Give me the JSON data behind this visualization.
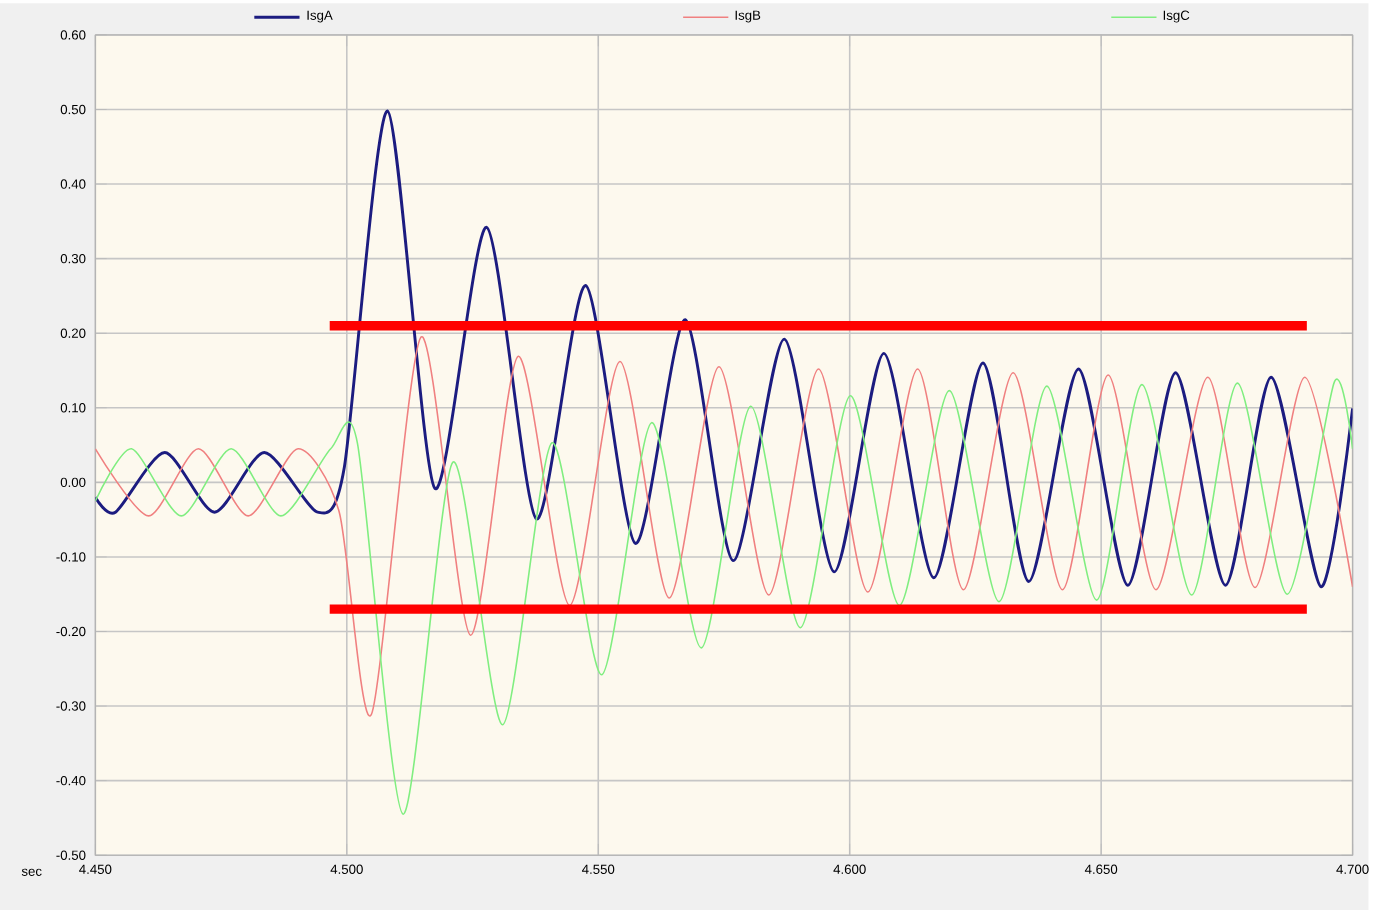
{
  "chart_data": {
    "type": "line",
    "xlabel": "sec",
    "legend": "top",
    "grid": true,
    "xlim": [
      4.45,
      4.7
    ],
    "ylim": [
      -0.5,
      0.6
    ],
    "xticks": [
      {
        "value": 4.45,
        "label": "4.450"
      },
      {
        "value": 4.5,
        "label": "4.500"
      },
      {
        "value": 4.55,
        "label": "4.550"
      },
      {
        "value": 4.6,
        "label": "4.600"
      },
      {
        "value": 4.65,
        "label": "4.650"
      },
      {
        "value": 4.7,
        "label": "4.700"
      }
    ],
    "yticks": [
      {
        "value": -0.5,
        "label": "-0.50"
      },
      {
        "value": -0.4,
        "label": "-0.40"
      },
      {
        "value": -0.3,
        "label": "-0.30"
      },
      {
        "value": -0.2,
        "label": "-0.20"
      },
      {
        "value": -0.1,
        "label": "-0.10"
      },
      {
        "value": 0,
        "label": "0.00"
      },
      {
        "value": 0.1,
        "label": "0.10"
      },
      {
        "value": 0.2,
        "label": "0.20"
      },
      {
        "value": 0.3,
        "label": "0.30"
      },
      {
        "value": 0.4,
        "label": "0.40"
      },
      {
        "value": 0.5,
        "label": "0.50"
      },
      {
        "value": 0.6,
        "label": "0.60"
      }
    ],
    "series": [
      {
        "name": "IsgA",
        "color": "#1c1c80",
        "x": [
          4.45,
          4.454,
          4.4638,
          4.4737,
          4.4836,
          4.4942,
          4.4995,
          4.5081,
          4.5175,
          4.5278,
          4.5377,
          4.5475,
          4.5574,
          4.5673,
          4.5768,
          4.587,
          4.5969,
          4.6068,
          4.6167,
          4.6265,
          4.6356,
          4.6455,
          4.6553,
          4.6648,
          4.6747,
          4.6838,
          4.6937,
          4.7
        ],
        "values": [
          -0.02,
          -0.04,
          0.04,
          -0.04,
          0.04,
          -0.04,
          0.02,
          0.498,
          -0.008,
          0.342,
          -0.049,
          0.264,
          -0.082,
          0.218,
          -0.105,
          0.192,
          -0.12,
          0.173,
          -0.128,
          0.16,
          -0.133,
          0.152,
          -0.138,
          0.147,
          -0.138,
          0.141,
          -0.14,
          0.099
        ]
      },
      {
        "name": "IsgB",
        "color": "#f08080",
        "x": [
          4.45,
          4.4606,
          4.4705,
          4.4804,
          4.4903,
          4.4985,
          4.5049,
          4.5148,
          4.5246,
          4.5341,
          4.5443,
          4.5543,
          4.5641,
          4.574,
          4.5839,
          4.5938,
          4.6036,
          4.6135,
          4.6226,
          4.6325,
          4.6423,
          4.6514,
          4.6609,
          4.6712,
          4.6806,
          4.6905,
          4.7
        ],
        "values": [
          0.045,
          -0.045,
          0.045,
          -0.045,
          0.045,
          -0.04,
          -0.311,
          0.195,
          -0.205,
          0.169,
          -0.165,
          0.162,
          -0.155,
          0.155,
          -0.151,
          0.152,
          -0.147,
          0.152,
          -0.144,
          0.147,
          -0.144,
          0.144,
          -0.144,
          0.141,
          -0.141,
          0.141,
          -0.14
        ]
      },
      {
        "name": "IsgC",
        "color": "#80ee80",
        "x": [
          4.45,
          4.4572,
          4.4671,
          4.477,
          4.4869,
          4.4968,
          4.5021,
          4.5112,
          4.5211,
          4.531,
          4.5408,
          4.5507,
          4.5606,
          4.5705,
          4.5803,
          4.5902,
          4.6001,
          4.6099,
          4.6198,
          4.6297,
          4.6392,
          4.6491,
          4.6581,
          4.668,
          4.6771,
          4.687,
          4.6964,
          4.7
        ],
        "values": [
          -0.025,
          0.045,
          -0.045,
          0.045,
          -0.045,
          0.045,
          0.053,
          -0.445,
          0.027,
          -0.325,
          0.053,
          -0.258,
          0.08,
          -0.222,
          0.102,
          -0.195,
          0.116,
          -0.165,
          0.123,
          -0.16,
          0.129,
          -0.158,
          0.131,
          -0.151,
          0.133,
          -0.15,
          0.135,
          0.045
        ]
      },
      {
        "color": "#ff0000",
        "x": [
          4.4966,
          4.6909
        ],
        "values": [
          0.21,
          0.21
        ]
      },
      {
        "color": "#ff0000",
        "x": [
          4.4966,
          4.6909
        ],
        "values": [
          -0.17,
          -0.17
        ]
      }
    ]
  }
}
